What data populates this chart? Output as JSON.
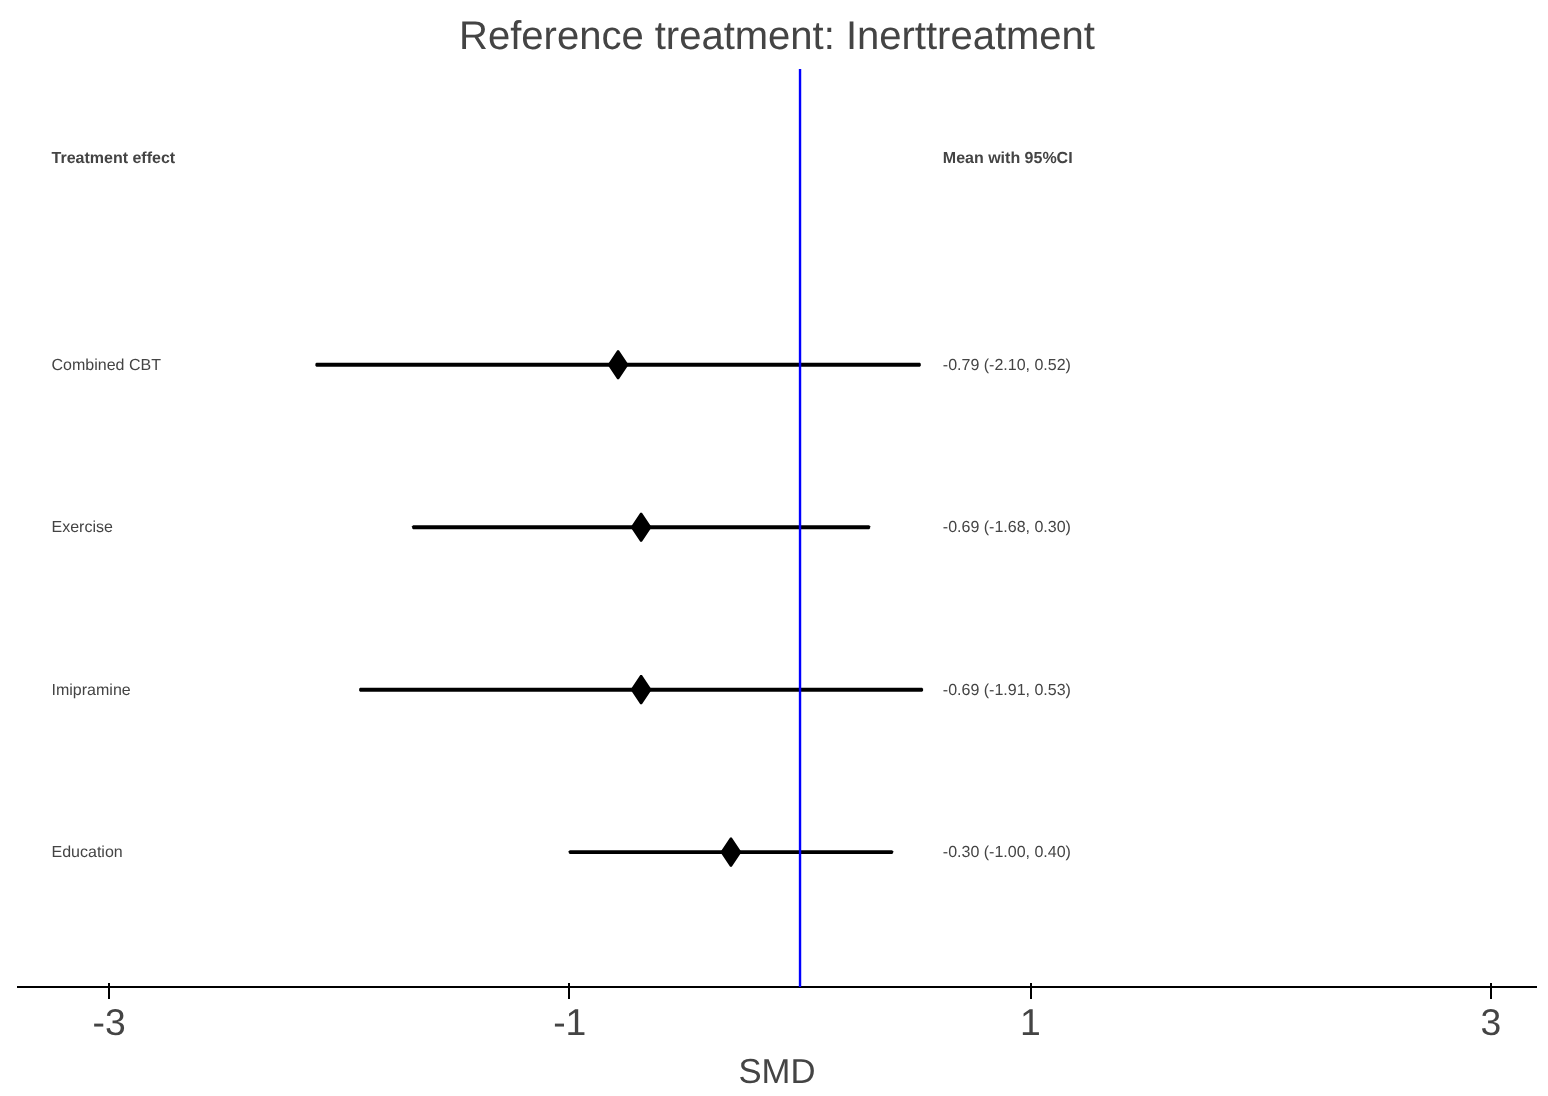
{
  "chart_data": {
    "type": "bar",
    "orientation": "horizontal",
    "title": "Reference treatment: Inerttreatment",
    "xlabel": "SMD",
    "categories": [
      "Combined CBT",
      "Exercise",
      "Imipramine",
      "Education"
    ],
    "series": [
      {
        "color": "#000000",
        "base": [
          -2.1,
          -1.68,
          -1.91,
          -1.0
        ],
        "values": [
          2.62,
          1.98,
          2.44,
          1.4
        ]
      },
      {
        "type": "scatter",
        "color": "#000000",
        "x": [
          "Combined CBT",
          "Exercise",
          "Imipramine",
          "Education"
        ],
        "values": [
          -0.79,
          -0.69,
          -0.69,
          -0.3
        ]
      }
    ],
    "marker": "diamond",
    "xlim": [
      -3.4,
      3.2
    ],
    "xticks": [
      -3,
      -1,
      1,
      3
    ],
    "grid": false,
    "tick_labels": "x",
    "ref_lines": [
      {
        "axis": "x",
        "value": 0,
        "color": "#0000ff"
      }
    ],
    "annotations": [
      "Treatment effect",
      "Mean with 95%CI",
      "-0.79 (-2.10, 0.52)",
      "-0.69 (-1.68, 0.30)",
      "-0.69 (-1.91, 0.53)",
      "-0.30 (-1.00, 0.40)"
    ]
  }
}
